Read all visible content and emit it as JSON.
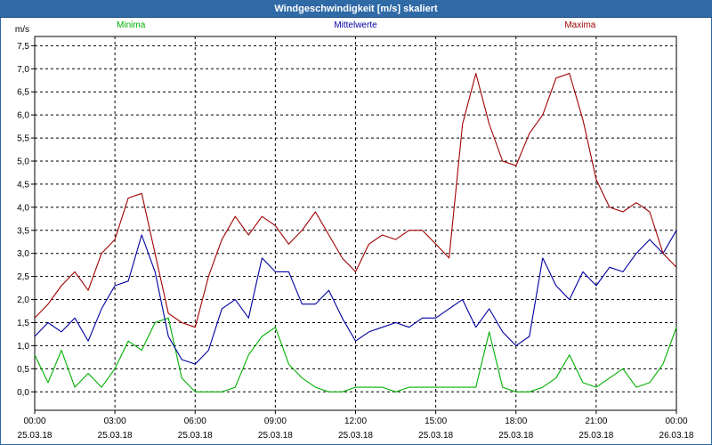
{
  "window": {
    "title": "Windgeschwindigkeit [m/s] skaliert"
  },
  "chart_data": {
    "type": "line",
    "title": "Windgeschwindigkeit [m/s] skaliert",
    "ylabel": "m/s",
    "ylim": [
      -0.4,
      7.7
    ],
    "xlim": [
      0,
      24
    ],
    "yticks": [
      0.0,
      0.5,
      1.0,
      1.5,
      2.0,
      2.5,
      3.0,
      3.5,
      4.0,
      4.5,
      5.0,
      5.5,
      6.0,
      6.5,
      7.0,
      7.5
    ],
    "ytick_labels": [
      "0,0",
      "0,5",
      "1,0",
      "1,5",
      "2,0",
      "2,5",
      "3,0",
      "3,5",
      "4,0",
      "4,5",
      "5,0",
      "5,5",
      "6,0",
      "6,5",
      "7,0",
      "7,5"
    ],
    "xticks": [
      {
        "time": "00:00",
        "date": "25.03.18"
      },
      {
        "time": "03:00",
        "date": "25.03.18"
      },
      {
        "time": "06:00",
        "date": "25.03.18"
      },
      {
        "time": "09:00",
        "date": "25.03.18"
      },
      {
        "time": "12:00",
        "date": "25.03.18"
      },
      {
        "time": "15:00",
        "date": "25.03.18"
      },
      {
        "time": "18:00",
        "date": "25.03.18"
      },
      {
        "time": "21:00",
        "date": "25.03.18"
      },
      {
        "time": "00:00",
        "date": "26.03.18"
      }
    ],
    "grid": true,
    "legend": "top",
    "x_hours": [
      0.0,
      0.5,
      1.0,
      1.5,
      2.0,
      2.5,
      3.0,
      3.5,
      4.0,
      4.5,
      5.0,
      5.5,
      6.0,
      6.5,
      7.0,
      7.5,
      8.0,
      8.5,
      9.0,
      9.5,
      10.0,
      10.5,
      11.0,
      11.5,
      12.0,
      12.5,
      13.0,
      13.5,
      14.0,
      14.5,
      15.0,
      15.5,
      16.0,
      16.5,
      17.0,
      17.5,
      18.0,
      18.5,
      19.0,
      19.5,
      20.0,
      20.5,
      21.0,
      21.5,
      22.0,
      22.5,
      23.0,
      23.5,
      24.0
    ],
    "series": [
      {
        "name": "Minima",
        "color": "#00b000",
        "values": [
          0.8,
          0.2,
          0.9,
          0.1,
          0.4,
          0.1,
          0.5,
          1.1,
          0.9,
          1.5,
          1.6,
          0.3,
          0.0,
          0.0,
          0.0,
          0.1,
          0.8,
          1.2,
          1.4,
          0.6,
          0.3,
          0.1,
          0.0,
          0.0,
          0.1,
          0.1,
          0.1,
          0.0,
          0.1,
          0.1,
          0.1,
          0.1,
          0.1,
          0.1,
          1.3,
          0.1,
          0.0,
          0.0,
          0.1,
          0.3,
          0.8,
          0.2,
          0.1,
          0.3,
          0.5,
          0.1,
          0.2,
          0.6,
          1.4
        ]
      },
      {
        "name": "Mittelwerte",
        "color": "#0000a0",
        "values": [
          1.2,
          1.5,
          1.3,
          1.6,
          1.1,
          1.8,
          2.3,
          2.4,
          3.4,
          2.6,
          1.2,
          0.7,
          0.6,
          0.9,
          1.8,
          2.0,
          1.6,
          2.9,
          2.6,
          2.6,
          1.9,
          1.9,
          2.2,
          1.6,
          1.1,
          1.3,
          1.4,
          1.5,
          1.4,
          1.6,
          1.6,
          1.8,
          2.0,
          1.4,
          1.8,
          1.3,
          1.0,
          1.2,
          2.9,
          2.3,
          2.0,
          2.6,
          2.3,
          2.7,
          2.6,
          3.0,
          3.3,
          3.0,
          3.5
        ]
      },
      {
        "name": "Maxima",
        "color": "#a00000",
        "values": [
          1.6,
          1.9,
          2.3,
          2.6,
          2.2,
          3.0,
          3.3,
          4.2,
          4.3,
          3.0,
          1.7,
          1.5,
          1.4,
          2.5,
          3.3,
          3.8,
          3.4,
          3.8,
          3.6,
          3.2,
          3.5,
          3.9,
          3.4,
          2.9,
          2.6,
          3.2,
          3.4,
          3.3,
          3.5,
          3.5,
          3.2,
          2.9,
          5.8,
          6.9,
          5.8,
          5.0,
          4.9,
          5.6,
          6.0,
          6.8,
          6.9,
          5.9,
          4.6,
          4.0,
          3.9,
          4.1,
          3.9,
          3.0,
          2.7
        ]
      }
    ]
  }
}
